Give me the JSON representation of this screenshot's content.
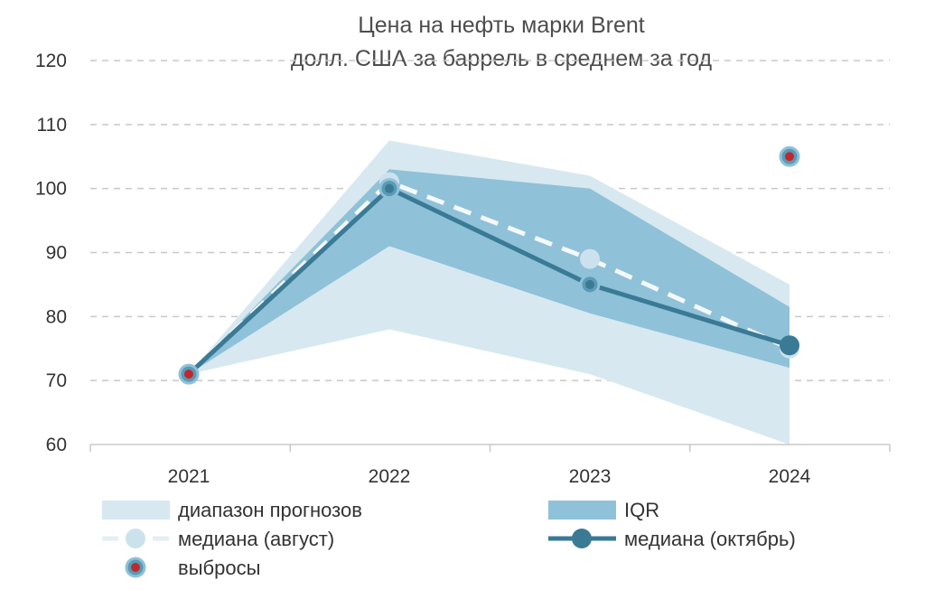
{
  "chart_data": {
    "type": "line",
    "title": "Цена на нефть марки Brent",
    "subtitle": "долл. США за баррель в среднем за год",
    "xlabel": "",
    "ylabel": "",
    "categories": [
      "2021",
      "2022",
      "2023",
      "2024"
    ],
    "ylim": [
      60,
      120
    ],
    "yticks": [
      60,
      70,
      80,
      90,
      100,
      110,
      120
    ],
    "grid": true,
    "bands": [
      {
        "name": "диапазон прогнозов",
        "color": "#d7e8f0",
        "lower": [
          71,
          78,
          71,
          60
        ],
        "upper": [
          71,
          107.5,
          102,
          85
        ]
      },
      {
        "name": "IQR",
        "color": "#8fc1d8",
        "lower": [
          71,
          91,
          80.5,
          72
        ],
        "upper": [
          71,
          103,
          100,
          81.5
        ]
      }
    ],
    "series": [
      {
        "name": "медиана (август)",
        "color": "#cbe2ec",
        "style": "dashed",
        "values": [
          71,
          101,
          89,
          75
        ]
      },
      {
        "name": "медиана (октябрь)",
        "color": "#3a7a95",
        "style": "solid",
        "values": [
          71,
          100,
          85,
          75.5
        ]
      }
    ],
    "outliers": {
      "name": "выбросы",
      "points": [
        {
          "x": "2021",
          "y": 71
        },
        {
          "x": "2024",
          "y": 105
        }
      ]
    },
    "legend_position": "bottom"
  }
}
